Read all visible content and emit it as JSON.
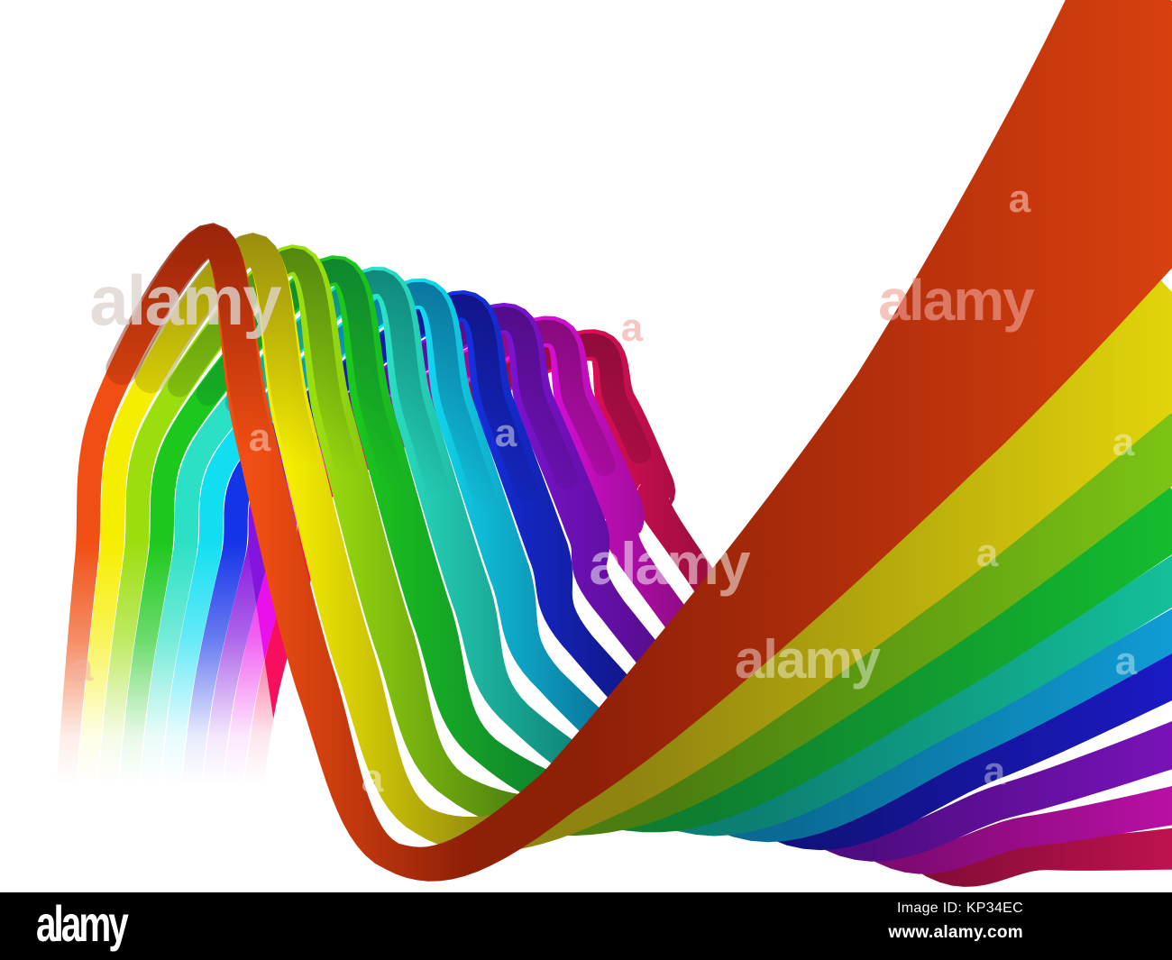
{
  "artwork": {
    "subject": "Abstract rainbow colored ribbon wave curling over itself on a white background",
    "background_color": "#ffffff",
    "separator_color": "#ffffff",
    "stripes": [
      {
        "name": "red-orange",
        "front": "#F04E12",
        "far": "#D8400E",
        "shadow": "#8F2008"
      },
      {
        "name": "yellow",
        "front": "#F6EE00",
        "far": "#E2D40A",
        "shadow": "#8F8410"
      },
      {
        "name": "lime-green",
        "front": "#9BDE0E",
        "far": "#7CC414",
        "shadow": "#4A7E10"
      },
      {
        "name": "green",
        "front": "#1CC81C",
        "far": "#14BC2E",
        "shadow": "#0E7E30"
      },
      {
        "name": "turquoise",
        "front": "#2BE0C4",
        "far": "#14C098",
        "shadow": "#0C7E72"
      },
      {
        "name": "cyan",
        "front": "#12DEF2",
        "far": "#109CD4",
        "shadow": "#0A6A94"
      },
      {
        "name": "blue",
        "front": "#1434E8",
        "far": "#1A1AC4",
        "shadow": "#12127E"
      },
      {
        "name": "purple",
        "front": "#8414DE",
        "far": "#7812B8",
        "shadow": "#4E0C80"
      },
      {
        "name": "magenta",
        "front": "#EA10EA",
        "far": "#B810A4",
        "shadow": "#7E0A72"
      },
      {
        "name": "pink-crimson",
        "front": "#F50F5E",
        "far": "#BE1250",
        "shadow": "#860C38"
      }
    ]
  },
  "watermark": {
    "wordmark": "alamy",
    "letter": "a"
  },
  "footer": {
    "logo": "alamy",
    "image_id": "Image ID: KP34EC",
    "website": "www.alamy.com",
    "background_color": "#000000",
    "text_color": "#ffffff"
  }
}
